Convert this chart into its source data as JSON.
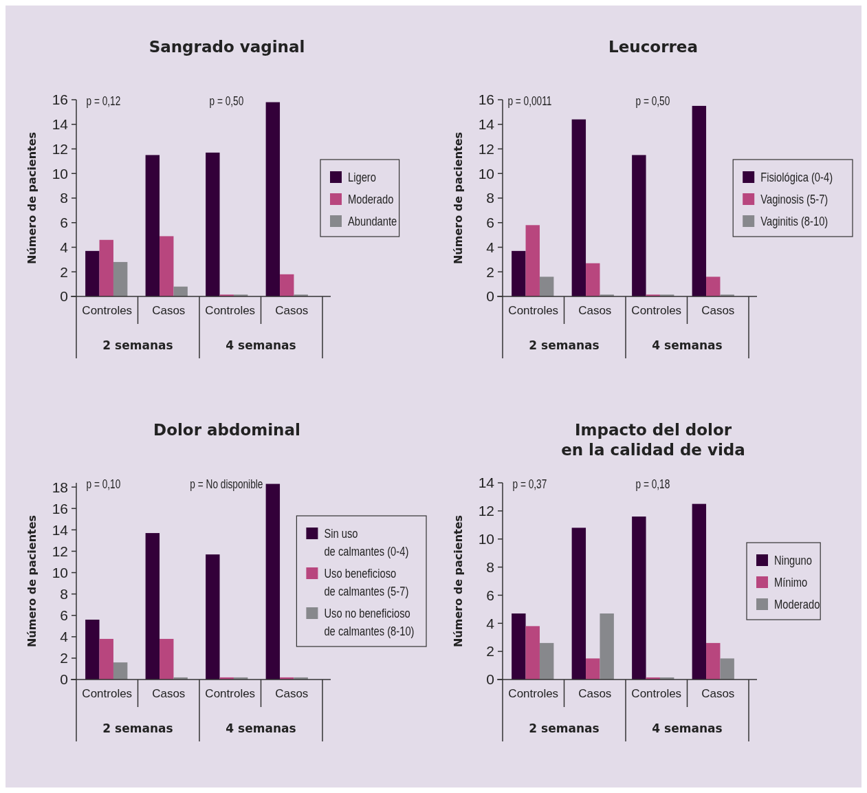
{
  "chart_data": [
    {
      "type": "bar",
      "title": "Sangrado vaginal",
      "ylabel": "Número de pacientes",
      "categories": [
        "Controles",
        "Casos",
        "Controles",
        "Casos"
      ],
      "series": [
        {
          "name": "Ligero",
          "color": "#330039",
          "values": [
            3.7,
            11.5,
            11.7,
            15.8
          ]
        },
        {
          "name": "Moderado",
          "color": "#b8467e",
          "values": [
            4.6,
            4.9,
            0.15,
            1.8
          ]
        },
        {
          "name": "Abundante",
          "color": "#87888c",
          "values": [
            2.8,
            0.8,
            0.15,
            0.15
          ]
        }
      ],
      "ylim": [
        0,
        16
      ],
      "yticks": [
        0,
        2,
        4,
        6,
        8,
        10,
        12,
        14,
        16
      ],
      "grid": false,
      "legend": "right",
      "annotations": [
        "p = 0,12",
        "p = 0,50",
        "2 semanas",
        "4 semanas"
      ]
    },
    {
      "type": "bar",
      "title": "Leucorrea",
      "ylabel": "Número de pacientes",
      "categories": [
        "Controles",
        "Casos",
        "Controles",
        "Casos"
      ],
      "series": [
        {
          "name": "Fisiológica (0-4)",
          "color": "#330039",
          "values": [
            3.7,
            14.4,
            11.5,
            15.5
          ]
        },
        {
          "name": "Vaginosis (5-7)",
          "color": "#b8467e",
          "values": [
            5.8,
            2.7,
            0.15,
            1.6
          ]
        },
        {
          "name": "Vaginitis (8-10)",
          "color": "#87888c",
          "values": [
            1.6,
            0.15,
            0.15,
            0.15
          ]
        }
      ],
      "ylim": [
        0,
        16
      ],
      "yticks": [
        0,
        2,
        4,
        6,
        8,
        10,
        12,
        14,
        16
      ],
      "grid": false,
      "legend": "right",
      "annotations": [
        "p = 0,0011",
        "p = 0,50",
        "2 semanas",
        "4 semanas"
      ]
    },
    {
      "type": "bar",
      "title": "Dolor abdominal",
      "ylabel": "Número de pacientes",
      "categories": [
        "Controles",
        "Casos",
        "Controles",
        "Casos"
      ],
      "series": [
        {
          "name": "Sin uso\nde calmantes (0-4)",
          "color": "#330039",
          "values": [
            5.6,
            13.7,
            11.7,
            18.3
          ]
        },
        {
          "name": "Uso beneficioso\nde calmantes (5-7)",
          "color": "#b8467e",
          "values": [
            3.8,
            3.8,
            0.2,
            0.2
          ]
        },
        {
          "name": "Uso no beneficioso\nde calmantes (8-10)",
          "color": "#87888c",
          "values": [
            1.6,
            0.2,
            0.2,
            0.2
          ]
        }
      ],
      "ylim": [
        0,
        18.4
      ],
      "yticks": [
        0,
        2,
        4,
        6,
        8,
        10,
        12,
        14,
        16,
        18
      ],
      "grid": false,
      "legend": "right",
      "annotations": [
        "p = 0,10",
        "p = No disponible",
        "2 semanas",
        "4 semanas"
      ]
    },
    {
      "type": "bar",
      "title": "Impacto del dolor\nen la calidad de vida",
      "ylabel": "Número de pacientes",
      "categories": [
        "Controles",
        "Casos",
        "Controles",
        "Casos"
      ],
      "series": [
        {
          "name": "Ninguno",
          "color": "#330039",
          "values": [
            4.7,
            10.8,
            11.6,
            12.5
          ]
        },
        {
          "name": "Mínimo",
          "color": "#b8467e",
          "values": [
            3.8,
            1.5,
            0.15,
            2.6
          ]
        },
        {
          "name": "Moderado",
          "color": "#87888c",
          "values": [
            2.6,
            4.7,
            0.15,
            1.5
          ]
        }
      ],
      "ylim": [
        0,
        14
      ],
      "yticks": [
        0,
        2,
        4,
        6,
        8,
        10,
        12,
        14
      ],
      "grid": false,
      "legend": "right",
      "annotations": [
        "p = 0,37",
        "p = 0,18",
        "2 semanas",
        "4 semanas"
      ]
    }
  ]
}
